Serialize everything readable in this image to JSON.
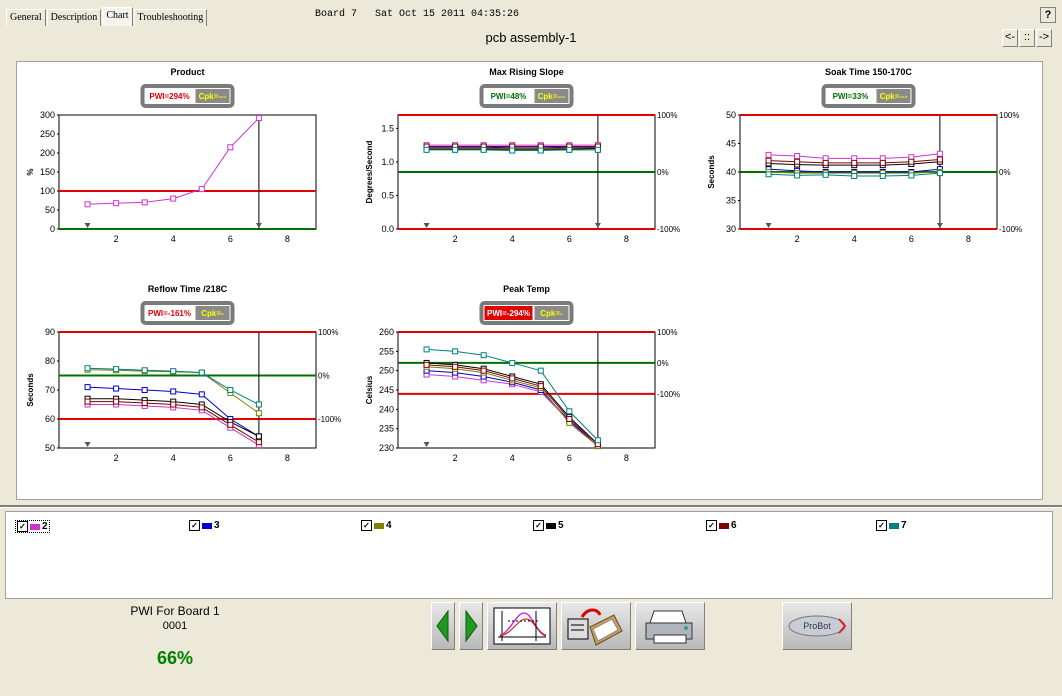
{
  "tabs": [
    "General",
    "Description",
    "Chart",
    "Troubleshooting"
  ],
  "active_tab": 2,
  "header": {
    "board": "Board 7",
    "datetime": "Sat Oct 15 2011 04:35:26",
    "help_label": "?"
  },
  "nav": {
    "prev": "<-",
    "mid": "::",
    "next": "->"
  },
  "assembly_title": "pcb assembly-1",
  "colors": {
    "s2": "#cc33cc",
    "s3": "#0000cc",
    "s4": "#808000",
    "s5": "#000000",
    "s6": "#800000",
    "s7": "#008080",
    "limit_red": "#e00000",
    "target_green": "#007000"
  },
  "chart_data": [
    {
      "type": "line",
      "title": "Product",
      "pwi": "PWI=294%",
      "cpk": "Cpk=---",
      "pwi_style": "red-text",
      "ylabel": "%",
      "yticks": [
        "300",
        "250",
        "200",
        "150",
        "100",
        "50",
        "0"
      ],
      "ylim": [
        0,
        300
      ],
      "xticks": [
        "2",
        "4",
        "6",
        "8"
      ],
      "xlim": [
        0,
        9
      ],
      "limits": [
        {
          "y": 100,
          "color": "red"
        },
        {
          "y": 0,
          "color": "green"
        }
      ],
      "right_labels": [],
      "series": [
        {
          "key": "s2",
          "x": [
            1,
            2,
            3,
            4,
            5,
            6,
            7
          ],
          "y": [
            65,
            68,
            70,
            80,
            105,
            215,
            292
          ]
        }
      ]
    },
    {
      "type": "line",
      "title": "Max Rising Slope",
      "pwi": "PWI=48%",
      "cpk": "Cpk=---",
      "pwi_style": "green-text",
      "ylabel": "Degrees/Second",
      "yticks": [
        "1.5",
        "1.0",
        "0.5",
        "0.0"
      ],
      "ylim": [
        0,
        1.7
      ],
      "xticks": [
        "2",
        "4",
        "6",
        "8"
      ],
      "xlim": [
        0,
        9
      ],
      "limits": [
        {
          "y": 1.7,
          "color": "red"
        },
        {
          "y": 0.85,
          "color": "green"
        },
        {
          "y": 0,
          "color": "red"
        }
      ],
      "right_labels": [
        {
          "y": 1.7,
          "t": "100%"
        },
        {
          "y": 0.85,
          "t": "0%"
        },
        {
          "y": 0,
          "t": "-100%"
        }
      ],
      "series": [
        {
          "key": "s2",
          "x": [
            1,
            2,
            3,
            4,
            5,
            6,
            7
          ],
          "y": [
            1.25,
            1.25,
            1.25,
            1.25,
            1.25,
            1.25,
            1.25
          ]
        },
        {
          "key": "s3",
          "x": [
            1,
            2,
            3,
            4,
            5,
            6,
            7
          ],
          "y": [
            1.22,
            1.22,
            1.22,
            1.21,
            1.21,
            1.22,
            1.22
          ]
        },
        {
          "key": "s4",
          "x": [
            1,
            2,
            3,
            4,
            5,
            6,
            7
          ],
          "y": [
            1.2,
            1.2,
            1.2,
            1.2,
            1.2,
            1.2,
            1.21
          ]
        },
        {
          "key": "s5",
          "x": [
            1,
            2,
            3,
            4,
            5,
            6,
            7
          ],
          "y": [
            1.19,
            1.19,
            1.19,
            1.19,
            1.19,
            1.19,
            1.2
          ]
        },
        {
          "key": "s6",
          "x": [
            1,
            2,
            3,
            4,
            5,
            6,
            7
          ],
          "y": [
            1.23,
            1.23,
            1.23,
            1.23,
            1.23,
            1.23,
            1.23
          ]
        },
        {
          "key": "s7",
          "x": [
            1,
            2,
            3,
            4,
            5,
            6,
            7
          ],
          "y": [
            1.18,
            1.18,
            1.18,
            1.17,
            1.17,
            1.18,
            1.18
          ]
        }
      ]
    },
    {
      "type": "line",
      "title": "Soak Time 150-170C",
      "pwi": "PWI=33%",
      "cpk": "Cpk=---",
      "pwi_style": "green-text",
      "ylabel": "Seconds",
      "yticks": [
        "50",
        "45",
        "40",
        "35",
        "30"
      ],
      "ylim": [
        30,
        50
      ],
      "xticks": [
        "2",
        "4",
        "6",
        "8"
      ],
      "xlim": [
        0,
        9
      ],
      "limits": [
        {
          "y": 50,
          "color": "red"
        },
        {
          "y": 40,
          "color": "green"
        },
        {
          "y": 30,
          "color": "red"
        }
      ],
      "right_labels": [
        {
          "y": 50,
          "t": "100%"
        },
        {
          "y": 40,
          "t": "0%"
        },
        {
          "y": 30,
          "t": "-100%"
        }
      ],
      "series": [
        {
          "key": "s2",
          "x": [
            1,
            2,
            3,
            4,
            5,
            6,
            7
          ],
          "y": [
            43,
            42.8,
            42.4,
            42.4,
            42.4,
            42.6,
            43.2
          ]
        },
        {
          "key": "s3",
          "x": [
            1,
            2,
            3,
            4,
            5,
            6,
            7
          ],
          "y": [
            40.5,
            40.2,
            40,
            40,
            40,
            40,
            40.5
          ]
        },
        {
          "key": "s4",
          "x": [
            1,
            2,
            3,
            4,
            5,
            6,
            7
          ],
          "y": [
            40,
            39.8,
            39.8,
            39.8,
            39.8,
            39.8,
            40
          ]
        },
        {
          "key": "s5",
          "x": [
            1,
            2,
            3,
            4,
            5,
            6,
            7
          ],
          "y": [
            41.5,
            41.3,
            41.2,
            41.2,
            41.2,
            41.4,
            41.8
          ]
        },
        {
          "key": "s6",
          "x": [
            1,
            2,
            3,
            4,
            5,
            6,
            7
          ],
          "y": [
            42,
            41.8,
            41.6,
            41.6,
            41.6,
            41.8,
            42.2
          ]
        },
        {
          "key": "s7",
          "x": [
            1,
            2,
            3,
            4,
            5,
            6,
            7
          ],
          "y": [
            39.6,
            39.4,
            39.5,
            39.3,
            39.3,
            39.4,
            39.8
          ]
        }
      ]
    },
    {
      "type": "line",
      "title": "Reflow Time /218C",
      "pwi": "PWI=-161%",
      "cpk": "Cpk=-",
      "pwi_style": "red-text",
      "ylabel": "Seconds",
      "yticks": [
        "90",
        "80",
        "70",
        "60",
        "50"
      ],
      "ylim": [
        50,
        90
      ],
      "xticks": [
        "2",
        "4",
        "6",
        "8"
      ],
      "xlim": [
        0,
        9
      ],
      "limits": [
        {
          "y": 90,
          "color": "red"
        },
        {
          "y": 75,
          "color": "green"
        },
        {
          "y": 60,
          "color": "red"
        }
      ],
      "right_labels": [
        {
          "y": 90,
          "t": "100%"
        },
        {
          "y": 75,
          "t": "0%"
        },
        {
          "y": 60,
          "t": "-100%"
        }
      ],
      "series": [
        {
          "key": "s2",
          "x": [
            1,
            2,
            3,
            4,
            5,
            6,
            7
          ],
          "y": [
            65,
            65,
            64.5,
            64,
            63,
            57,
            51
          ]
        },
        {
          "key": "s3",
          "x": [
            1,
            2,
            3,
            4,
            5,
            6,
            7
          ],
          "y": [
            71,
            70.5,
            70,
            69.5,
            68.5,
            60,
            54
          ]
        },
        {
          "key": "s4",
          "x": [
            1,
            2,
            3,
            4,
            5,
            6,
            7
          ],
          "y": [
            77,
            76.8,
            76.5,
            76.3,
            76,
            69,
            62
          ]
        },
        {
          "key": "s5",
          "x": [
            1,
            2,
            3,
            4,
            5,
            6,
            7
          ],
          "y": [
            67,
            67,
            66.5,
            66,
            65,
            59,
            54
          ]
        },
        {
          "key": "s6",
          "x": [
            1,
            2,
            3,
            4,
            5,
            6,
            7
          ],
          "y": [
            66,
            66,
            65.5,
            65,
            64,
            58,
            52
          ]
        },
        {
          "key": "s7",
          "x": [
            1,
            2,
            3,
            4,
            5,
            6,
            7
          ],
          "y": [
            77.5,
            77.2,
            76.8,
            76.5,
            76,
            70,
            65
          ]
        }
      ]
    },
    {
      "type": "line",
      "title": "Peak Temp",
      "pwi": "PWI=-294%",
      "cpk": "Cpk=-",
      "pwi_style": "red-box",
      "ylabel": "Celsius",
      "yticks": [
        "260",
        "255",
        "250",
        "245",
        "240",
        "235",
        "230"
      ],
      "ylim": [
        230,
        260
      ],
      "xticks": [
        "2",
        "4",
        "6",
        "8"
      ],
      "xlim": [
        0,
        9
      ],
      "limits": [
        {
          "y": 260,
          "color": "red"
        },
        {
          "y": 252,
          "color": "green"
        },
        {
          "y": 244,
          "color": "red"
        }
      ],
      "right_labels": [
        {
          "y": 260,
          "t": "100%"
        },
        {
          "y": 252,
          "t": "0%"
        },
        {
          "y": 244,
          "t": "-100%"
        }
      ],
      "series": [
        {
          "key": "s2",
          "x": [
            1,
            2,
            3,
            4,
            5,
            6,
            7
          ],
          "y": [
            249,
            248.5,
            247.5,
            246.5,
            244.5,
            237,
            231
          ]
        },
        {
          "key": "s3",
          "x": [
            1,
            2,
            3,
            4,
            5,
            6,
            7
          ],
          "y": [
            250,
            249.5,
            248.5,
            247,
            245,
            237,
            230.5
          ]
        },
        {
          "key": "s4",
          "x": [
            1,
            2,
            3,
            4,
            5,
            6,
            7
          ],
          "y": [
            251,
            250.5,
            249.5,
            247.5,
            245.5,
            236.5,
            230.5
          ]
        },
        {
          "key": "s5",
          "x": [
            1,
            2,
            3,
            4,
            5,
            6,
            7
          ],
          "y": [
            252,
            251.5,
            250.5,
            248.5,
            246.5,
            238,
            231
          ]
        },
        {
          "key": "s6",
          "x": [
            1,
            2,
            3,
            4,
            5,
            6,
            7
          ],
          "y": [
            251.5,
            251,
            250,
            248,
            246,
            237.5,
            231
          ]
        },
        {
          "key": "s7",
          "x": [
            1,
            2,
            3,
            4,
            5,
            6,
            7
          ],
          "y": [
            255.5,
            255,
            254,
            252,
            250,
            239.5,
            232
          ]
        }
      ]
    }
  ],
  "legend": [
    {
      "label": "2",
      "key": "s2",
      "checked": "✓"
    },
    {
      "label": "3",
      "key": "s3",
      "checked": "✓"
    },
    {
      "label": "4",
      "key": "s4",
      "checked": "✓"
    },
    {
      "label": "5",
      "key": "s5",
      "checked": "✓"
    },
    {
      "label": "6",
      "key": "s6",
      "checked": "✓"
    },
    {
      "label": "7",
      "key": "s7",
      "checked": "✓"
    }
  ],
  "pwi_summary": {
    "title": "PWI For Board 1",
    "id": "0001",
    "value": "66%"
  },
  "toolbar": [
    {
      "name": "prev-green-arrow-icon"
    },
    {
      "name": "next-green-arrow-icon"
    },
    {
      "name": "profile-graph-icon"
    },
    {
      "name": "clipboard-icon"
    },
    {
      "name": "printer-icon"
    },
    {
      "name": "probot-logo-icon",
      "text": "ProBot"
    }
  ]
}
